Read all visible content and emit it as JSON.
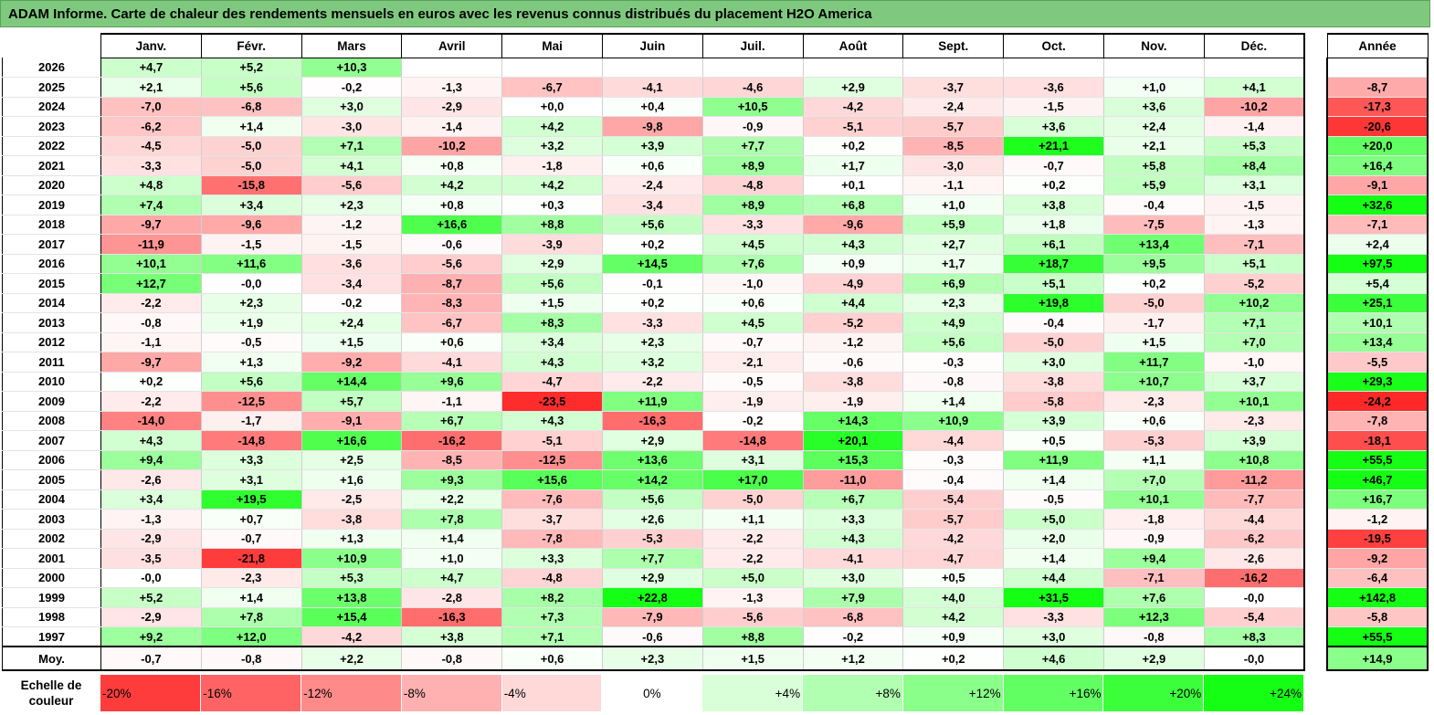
{
  "title": "ADAM Informe. Carte de chaleur des rendements mensuels en euros avec les revenus connus distribués du placement H2O America",
  "chart_data": {
    "type": "heatmap",
    "title": "ADAM Informe. Carte de chaleur des rendements mensuels en euros avec les revenus connus distribués du placement H2O America",
    "months": [
      "Janv.",
      "Févr.",
      "Mars",
      "Avril",
      "Mai",
      "Juin",
      "Juil.",
      "Août",
      "Sept.",
      "Oct.",
      "Nov.",
      "Déc."
    ],
    "year_header": "Année",
    "rows": [
      {
        "year": "2026",
        "values": [
          "+4,7",
          "+5,2",
          "+10,3",
          "",
          "",
          "",
          "",
          "",
          "",
          "",
          "",
          ""
        ],
        "annual": ""
      },
      {
        "year": "2025",
        "values": [
          "+2,1",
          "+5,6",
          "-0,2",
          "-1,3",
          "-6,7",
          "-4,1",
          "-4,6",
          "+2,9",
          "-3,7",
          "-3,6",
          "+1,0",
          "+4,1"
        ],
        "annual": "-8,7"
      },
      {
        "year": "2024",
        "values": [
          "-7,0",
          "-6,8",
          "+3,0",
          "-2,9",
          "+0,0",
          "+0,4",
          "+10,5",
          "-4,2",
          "-2,4",
          "-1,5",
          "+3,6",
          "-10,2"
        ],
        "annual": "-17,3"
      },
      {
        "year": "2023",
        "values": [
          "-6,2",
          "+1,4",
          "-3,0",
          "-1,4",
          "+4,2",
          "-9,8",
          "-0,9",
          "-5,1",
          "-5,7",
          "+3,6",
          "+2,4",
          "-1,4"
        ],
        "annual": "-20,6"
      },
      {
        "year": "2022",
        "values": [
          "-4,5",
          "-5,0",
          "+7,1",
          "-10,2",
          "+3,2",
          "+3,9",
          "+7,7",
          "+0,2",
          "-8,5",
          "+21,1",
          "+2,1",
          "+5,3"
        ],
        "annual": "+20,0"
      },
      {
        "year": "2021",
        "values": [
          "-3,3",
          "-5,0",
          "+4,1",
          "+0,8",
          "-1,8",
          "+0,6",
          "+8,9",
          "+1,7",
          "-3,0",
          "-0,7",
          "+5,8",
          "+8,4"
        ],
        "annual": "+16,4"
      },
      {
        "year": "2020",
        "values": [
          "+4,8",
          "-15,8",
          "-5,6",
          "+4,2",
          "+4,2",
          "-2,4",
          "-4,8",
          "+0,1",
          "-1,1",
          "+0,2",
          "+5,9",
          "+3,1"
        ],
        "annual": "-9,1"
      },
      {
        "year": "2019",
        "values": [
          "+7,4",
          "+3,4",
          "+2,3",
          "+0,8",
          "+0,3",
          "-3,4",
          "+8,9",
          "+6,8",
          "+1,0",
          "+3,8",
          "-0,4",
          "-1,5"
        ],
        "annual": "+32,6"
      },
      {
        "year": "2018",
        "values": [
          "-9,7",
          "-9,6",
          "-1,2",
          "+16,6",
          "+8,8",
          "+5,6",
          "-3,3",
          "-9,6",
          "+5,9",
          "+1,8",
          "-7,5",
          "-1,3"
        ],
        "annual": "-7,1"
      },
      {
        "year": "2017",
        "values": [
          "-11,9",
          "-1,5",
          "-1,5",
          "-0,6",
          "-3,9",
          "+0,2",
          "+4,5",
          "+4,3",
          "+2,7",
          "+6,1",
          "+13,4",
          "-7,1"
        ],
        "annual": "+2,4"
      },
      {
        "year": "2016",
        "values": [
          "+10,1",
          "+11,6",
          "-3,6",
          "-5,6",
          "+2,9",
          "+14,5",
          "+7,6",
          "+0,9",
          "+1,7",
          "+18,7",
          "+9,5",
          "+5,1"
        ],
        "annual": "+97,5"
      },
      {
        "year": "2015",
        "values": [
          "+12,7",
          "-0,0",
          "-3,4",
          "-8,7",
          "+5,6",
          "-0,1",
          "-1,0",
          "-4,9",
          "+6,9",
          "+5,1",
          "+0,2",
          "-5,2"
        ],
        "annual": "+5,4"
      },
      {
        "year": "2014",
        "values": [
          "-2,2",
          "+2,3",
          "-0,2",
          "-8,3",
          "+1,5",
          "+0,2",
          "+0,6",
          "+4,4",
          "+2,3",
          "+19,8",
          "-5,0",
          "+10,2"
        ],
        "annual": "+25,1"
      },
      {
        "year": "2013",
        "values": [
          "-0,8",
          "+1,9",
          "+2,4",
          "-6,7",
          "+8,3",
          "-3,3",
          "+4,5",
          "-5,2",
          "+4,9",
          "-0,4",
          "-1,7",
          "+7,1"
        ],
        "annual": "+10,1"
      },
      {
        "year": "2012",
        "values": [
          "-1,1",
          "-0,5",
          "+1,5",
          "+0,6",
          "+3,4",
          "+2,3",
          "-0,7",
          "-1,2",
          "+5,6",
          "-5,0",
          "+1,5",
          "+7,0"
        ],
        "annual": "+13,4"
      },
      {
        "year": "2011",
        "values": [
          "-9,7",
          "+1,3",
          "-9,2",
          "-4,1",
          "+4,3",
          "+3,2",
          "-2,1",
          "-0,6",
          "-0,3",
          "+3,0",
          "+11,7",
          "-1,0"
        ],
        "annual": "-5,5"
      },
      {
        "year": "2010",
        "values": [
          "+0,2",
          "+5,6",
          "+14,4",
          "+9,6",
          "-4,7",
          "-2,2",
          "-0,5",
          "-3,8",
          "-0,8",
          "-3,8",
          "+10,7",
          "+3,7"
        ],
        "annual": "+29,3"
      },
      {
        "year": "2009",
        "values": [
          "-2,2",
          "-12,5",
          "+5,7",
          "-1,1",
          "-23,5",
          "+11,9",
          "-1,9",
          "-1,9",
          "+1,4",
          "-5,8",
          "-2,3",
          "+10,1"
        ],
        "annual": "-24,2"
      },
      {
        "year": "2008",
        "values": [
          "-14,0",
          "-1,7",
          "-9,1",
          "+6,7",
          "+4,3",
          "-16,3",
          "-0,2",
          "+14,3",
          "+10,9",
          "+3,9",
          "+0,6",
          "-2,3"
        ],
        "annual": "-7,8"
      },
      {
        "year": "2007",
        "values": [
          "+4,3",
          "-14,8",
          "+16,6",
          "-16,2",
          "-5,1",
          "+2,9",
          "-14,8",
          "+20,1",
          "-4,4",
          "+0,5",
          "-5,3",
          "+3,9"
        ],
        "annual": "-18,1"
      },
      {
        "year": "2006",
        "values": [
          "+9,4",
          "+3,3",
          "+2,5",
          "-8,5",
          "-12,5",
          "+13,6",
          "+3,1",
          "+15,3",
          "-0,3",
          "+11,9",
          "+1,1",
          "+10,8"
        ],
        "annual": "+55,5"
      },
      {
        "year": "2005",
        "values": [
          "-2,6",
          "+3,1",
          "+1,6",
          "+9,3",
          "+15,6",
          "+14,2",
          "+17,0",
          "-11,0",
          "-0,4",
          "+1,4",
          "+7,0",
          "-11,2"
        ],
        "annual": "+46,7"
      },
      {
        "year": "2004",
        "values": [
          "+3,4",
          "+19,5",
          "-2,5",
          "+2,2",
          "-7,6",
          "+5,6",
          "-5,0",
          "+6,7",
          "-5,4",
          "-0,5",
          "+10,1",
          "-7,7"
        ],
        "annual": "+16,7"
      },
      {
        "year": "2003",
        "values": [
          "-1,3",
          "+0,7",
          "-3,8",
          "+7,8",
          "-3,7",
          "+2,6",
          "+1,1",
          "+3,3",
          "-5,7",
          "+5,0",
          "-1,8",
          "-4,4"
        ],
        "annual": "-1,2"
      },
      {
        "year": "2002",
        "values": [
          "-2,9",
          "-0,7",
          "+1,3",
          "+1,4",
          "-7,8",
          "-5,3",
          "-2,2",
          "+4,3",
          "-4,2",
          "+2,0",
          "-0,9",
          "-6,2"
        ],
        "annual": "-19,5"
      },
      {
        "year": "2001",
        "values": [
          "-3,5",
          "-21,8",
          "+10,9",
          "+1,0",
          "+3,3",
          "+7,7",
          "-2,2",
          "-4,1",
          "-4,7",
          "+1,4",
          "+9,4",
          "-2,6"
        ],
        "annual": "-9,2"
      },
      {
        "year": "2000",
        "values": [
          "-0,0",
          "-2,3",
          "+5,3",
          "+4,7",
          "-4,8",
          "+2,9",
          "+5,0",
          "+3,0",
          "+0,5",
          "+4,4",
          "-7,1",
          "-16,2"
        ],
        "annual": "-6,4"
      },
      {
        "year": "1999",
        "values": [
          "+5,2",
          "+1,4",
          "+13,8",
          "-2,8",
          "+8,2",
          "+22,8",
          "-1,3",
          "+7,9",
          "+4,0",
          "+31,5",
          "+7,6",
          "-0,0"
        ],
        "annual": "+142,8"
      },
      {
        "year": "1998",
        "values": [
          "-2,9",
          "+7,8",
          "+15,4",
          "-16,3",
          "+7,3",
          "-7,9",
          "-5,6",
          "-6,8",
          "+4,2",
          "-3,3",
          "+12,3",
          "-5,4"
        ],
        "annual": "-5,8"
      },
      {
        "year": "1997",
        "values": [
          "+9,2",
          "+12,0",
          "-4,2",
          "+3,8",
          "+7,1",
          "-0,6",
          "+8,8",
          "-0,2",
          "+0,9",
          "+3,0",
          "-0,8",
          "+8,3"
        ],
        "annual": "+55,5"
      }
    ],
    "average": {
      "label": "Moy.",
      "values": [
        "-0,7",
        "-0,8",
        "+2,2",
        "-0,8",
        "+0,6",
        "+2,3",
        "+1,5",
        "+1,2",
        "+0,2",
        "+4,6",
        "+2,9",
        "-0,0"
      ],
      "annual": "+14,9"
    },
    "color_scale": {
      "label": "Echelle de couleur",
      "steps": [
        "-20%",
        "-16%",
        "-12%",
        "-8%",
        "-4%",
        "0%",
        "+4%",
        "+8%",
        "+12%",
        "+16%",
        "+20%",
        "+24%"
      ],
      "min_color": "#ff0000",
      "mid_color": "#ffffff",
      "max_color": "#00ff00"
    }
  }
}
